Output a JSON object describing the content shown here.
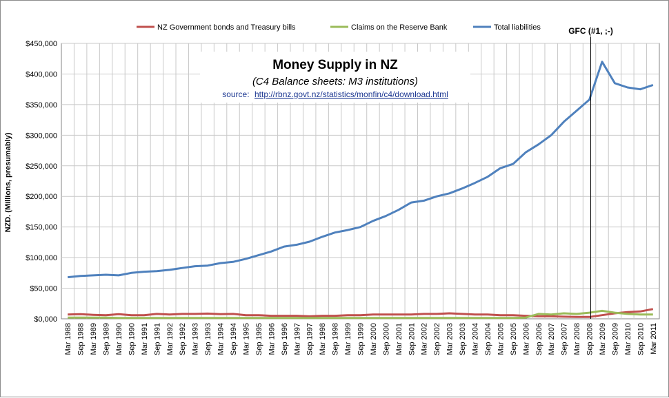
{
  "chart_data": {
    "type": "line",
    "title": "Money Supply in NZ",
    "subtitle": "(C4 Balance sheets: M3 institutions)",
    "source_label": "source:",
    "source_url": "http://rbnz.govt.nz/statistics/monfin/c4/download.html",
    "ylabel": "NZD. (Millions, presumably)",
    "xlabel": "",
    "ylim": [
      0,
      450000
    ],
    "yticks": [
      "$0,000",
      "$50,000",
      "$100,000",
      "$150,000",
      "$200,000",
      "$250,000",
      "$300,000",
      "$350,000",
      "$400,000",
      "$450,000"
    ],
    "x_tick_labels": [
      "Mar 1988",
      "Sep 1988",
      "Mar 1989",
      "Sep 1989",
      "Mar 1990",
      "Sep 1990",
      "Mar 1991",
      "Sep 1991",
      "Mar 1992",
      "Sep 1992",
      "Mar 1993",
      "Sep 1993",
      "Mar 1994",
      "Sep 1994",
      "Mar 1995",
      "Sep 1995",
      "Mar 1996",
      "Sep 1996",
      "Mar 1997",
      "Sep 1997",
      "Mar 1998",
      "Sep 1998",
      "Mar 1999",
      "Sep 1999",
      "Mar 2000",
      "Sep 2000",
      "Mar 2001",
      "Sep 2001",
      "Mar 2002",
      "Sep 2002",
      "Mar 2003",
      "Sep 2003",
      "Mar 2004",
      "Sep 2004",
      "Mar 2005",
      "Sep 2005",
      "Mar 2006",
      "Sep 2006",
      "Mar 2007",
      "Sep 2007",
      "Mar 2008",
      "Sep 2008",
      "Mar 2009",
      "Sep 2009",
      "Mar 2010",
      "Sep 2010",
      "Mar 2011"
    ],
    "grid": true,
    "legend_position": "top",
    "annotation": {
      "label": "GFC (#1, ;-)",
      "x": "Sep 2008"
    },
    "series": [
      {
        "name": "NZ Government bonds and Treasury bills",
        "color": "#c0504d",
        "values": [
          7000,
          7500,
          6500,
          6000,
          7500,
          6000,
          6000,
          8000,
          7000,
          8000,
          8000,
          8500,
          7500,
          8000,
          6000,
          6000,
          5000,
          5000,
          5000,
          4000,
          5000,
          5000,
          6000,
          6000,
          7000,
          7000,
          7000,
          7000,
          8000,
          8000,
          9000,
          8000,
          7000,
          7000,
          6000,
          6000,
          5000,
          4000,
          4000,
          3500,
          3000,
          3000,
          6000,
          9000,
          11000,
          12000,
          16000
        ]
      },
      {
        "name": "Claims on the Reserve Bank",
        "color": "#9bbb59",
        "values": [
          2000,
          2000,
          2000,
          2000,
          1500,
          1500,
          1500,
          1500,
          1500,
          1500,
          1500,
          1500,
          1500,
          1500,
          1500,
          1500,
          1500,
          1500,
          1500,
          1500,
          1500,
          1500,
          1500,
          1500,
          1500,
          1500,
          1500,
          1500,
          1500,
          1500,
          1500,
          1500,
          1500,
          1500,
          1500,
          1500,
          2000,
          8000,
          7000,
          9000,
          8000,
          10000,
          13000,
          10000,
          8000,
          7000,
          7000
        ]
      },
      {
        "name": "Total liabilities",
        "color": "#4f81bd",
        "values": [
          68000,
          70000,
          71000,
          72000,
          71000,
          75000,
          77000,
          78000,
          80000,
          83000,
          86000,
          87000,
          91000,
          93000,
          98000,
          104000,
          110000,
          118000,
          121000,
          126000,
          134000,
          141000,
          145000,
          150000,
          160000,
          168000,
          178000,
          190000,
          193000,
          200000,
          205000,
          213000,
          222000,
          232000,
          246000,
          253000,
          272000,
          285000,
          300000,
          322000,
          340000,
          358000,
          420000,
          385000,
          378000,
          375000,
          382000
        ]
      }
    ]
  }
}
